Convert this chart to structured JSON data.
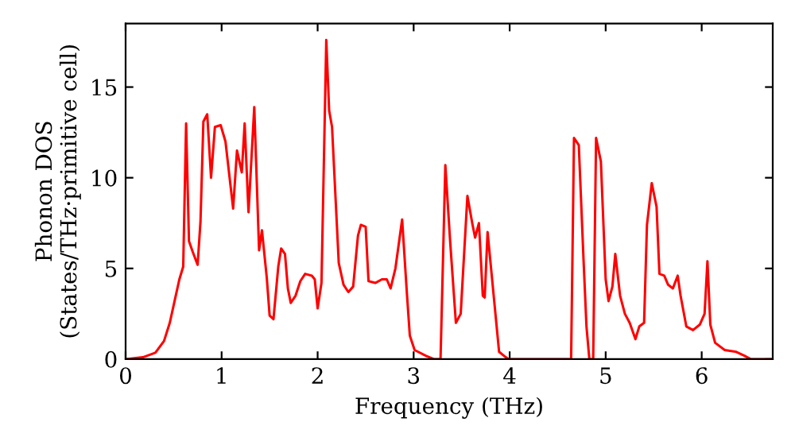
{
  "chart_data": {
    "type": "line",
    "xlabel": "Frequency (THz)",
    "ylabel": "Phonon DOS\n(States/THz·primitive cell)",
    "xlim": [
      0,
      6.74
    ],
    "ylim": [
      0,
      18.5
    ],
    "xticks": [
      0,
      1,
      2,
      3,
      4,
      5,
      6
    ],
    "yticks": [
      0,
      5,
      10,
      15
    ],
    "grid": false,
    "legend": false,
    "marker": "none",
    "line_style": "solid",
    "series": [
      {
        "color": "#ff0000",
        "x": [
          0,
          0.18,
          0.31,
          0.4,
          0.46,
          0.51,
          0.56,
          0.6,
          0.63,
          0.66,
          0.7,
          0.75,
          0.78,
          0.81,
          0.85,
          0.89,
          0.93,
          0.99,
          1.04,
          1.12,
          1.16,
          1.21,
          1.24,
          1.28,
          1.34,
          1.39,
          1.42,
          1.47,
          1.5,
          1.54,
          1.59,
          1.62,
          1.66,
          1.69,
          1.72,
          1.77,
          1.82,
          1.87,
          1.94,
          1.97,
          2.0,
          2.04,
          2.09,
          2.12,
          2.15,
          2.22,
          2.27,
          2.32,
          2.37,
          2.42,
          2.45,
          2.5,
          2.53,
          2.6,
          2.67,
          2.72,
          2.76,
          2.81,
          2.88,
          2.93,
          2.96,
          3.01,
          3.13,
          3.21,
          3.28,
          3.33,
          3.38,
          3.44,
          3.49,
          3.56,
          3.61,
          3.64,
          3.68,
          3.72,
          3.74,
          3.77,
          3.89,
          3.96,
          3.99,
          4.64,
          4.67,
          4.72,
          4.77,
          4.8,
          4.83,
          4.87,
          4.9,
          4.95,
          5.0,
          5.03,
          5.07,
          5.1,
          5.15,
          5.2,
          5.25,
          5.31,
          5.35,
          5.4,
          5.43,
          5.48,
          5.53,
          5.56,
          5.61,
          5.65,
          5.7,
          5.75,
          5.78,
          5.84,
          5.91,
          5.98,
          6.03,
          6.06,
          6.09,
          6.14,
          6.24,
          6.36,
          6.44,
          6.51,
          6.74
        ],
        "values": [
          0,
          0.1,
          0.35,
          1,
          2,
          3.2,
          4.4,
          5.1,
          13,
          6.5,
          5.9,
          5.2,
          7.6,
          13.1,
          13.5,
          10,
          12.8,
          12.9,
          12,
          8.3,
          11.5,
          10.3,
          13,
          8.1,
          13.9,
          6,
          7.1,
          4.5,
          2.4,
          2.2,
          5.1,
          6.1,
          5.8,
          3.9,
          3.1,
          3.5,
          4.3,
          4.7,
          4.6,
          4.4,
          2.8,
          4.2,
          17.6,
          13.7,
          12.8,
          5.3,
          4.1,
          3.7,
          4.0,
          6.8,
          7.4,
          7.3,
          4.3,
          4.2,
          4.4,
          4.4,
          3.9,
          5,
          7.7,
          3.6,
          1.3,
          0.5,
          0.18,
          0,
          0,
          10.7,
          6.5,
          2.0,
          2.5,
          9.0,
          7.5,
          6.7,
          7.5,
          3.5,
          3.4,
          7.0,
          0.4,
          0.1,
          0,
          0,
          12.2,
          11.8,
          5.4,
          1.8,
          0,
          0,
          12.2,
          10.9,
          4.4,
          3.2,
          4,
          5.8,
          3.5,
          2.5,
          2,
          1.1,
          1.8,
          2,
          7.4,
          9.7,
          8.4,
          4.7,
          4.6,
          4.1,
          3.9,
          4.6,
          3.5,
          1.8,
          1.6,
          1.9,
          2.5,
          5.4,
          1.9,
          0.9,
          0.5,
          0.4,
          0.2,
          0,
          0
        ]
      }
    ]
  }
}
